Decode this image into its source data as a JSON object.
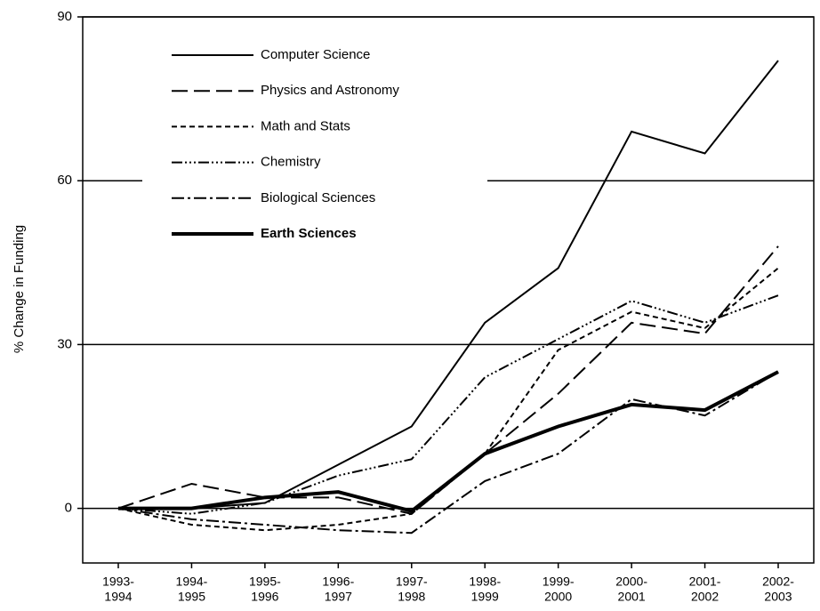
{
  "chart_data": {
    "type": "line",
    "y_label": "% Change in Funding",
    "categories": [
      [
        "1993-",
        "1994"
      ],
      [
        "1994-",
        "1995"
      ],
      [
        "1995-",
        "1996"
      ],
      [
        "1996-",
        "1997"
      ],
      [
        "1997-",
        "1998"
      ],
      [
        "1998-",
        "1999"
      ],
      [
        "1999-",
        "2000"
      ],
      [
        "2000-",
        "2001"
      ],
      [
        "2001-",
        "2002"
      ],
      [
        "2002-",
        "2003"
      ]
    ],
    "series": [
      {
        "name": "Computer Science",
        "color": "#000",
        "dash": "",
        "width": 2,
        "values": [
          0,
          0,
          1,
          8,
          15,
          34,
          44,
          69,
          65,
          82
        ]
      },
      {
        "name": "Physics and Astronomy",
        "color": "#000",
        "dash": "18 7",
        "width": 2,
        "values": [
          0,
          4.5,
          2,
          2,
          -1,
          10,
          21,
          34,
          32,
          48
        ]
      },
      {
        "name": "Math and Stats",
        "color": "#000",
        "dash": "6 4",
        "width": 2,
        "values": [
          0,
          -3,
          -4,
          -3,
          -1,
          10,
          29,
          36,
          33,
          44
        ]
      },
      {
        "name": "Chemistry",
        "color": "#000",
        "dash": "12 3 2 3 2 3 2 3",
        "width": 2,
        "values": [
          0,
          -1,
          1,
          6,
          9,
          24,
          31,
          38,
          34,
          39
        ]
      },
      {
        "name": "Biological Sciences",
        "color": "#000",
        "dash": "14 4 3 4",
        "width": 2,
        "values": [
          0,
          -2,
          -3,
          -4,
          -4.5,
          5,
          10,
          20,
          17,
          25
        ]
      },
      {
        "name": "Earth Sciences",
        "color": "#000",
        "dash": "",
        "width": 4,
        "values": [
          0,
          0,
          2,
          3,
          -0.5,
          10,
          15,
          19,
          18,
          25
        ]
      }
    ],
    "ylim": [
      -10,
      90
    ],
    "yticks": [
      0,
      30,
      60,
      90
    ],
    "grid": true,
    "legend": "upper-left"
  }
}
